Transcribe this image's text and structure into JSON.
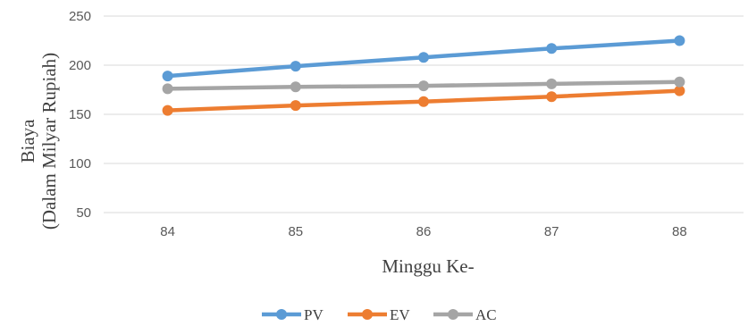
{
  "chart_data": {
    "type": "line",
    "title": "",
    "xlabel": "Minggu Ke-",
    "ylabel_line1": "Biaya",
    "ylabel_line2": "(Dalam Milyar Rupiah)",
    "categories": [
      "84",
      "85",
      "86",
      "87",
      "88"
    ],
    "y_ticks": [
      "50",
      "100",
      "150",
      "200",
      "250"
    ],
    "ylim": [
      50,
      250
    ],
    "grid": true,
    "legend_position": "bottom",
    "series": [
      {
        "name": "PV",
        "color": "#5B9BD5",
        "values": [
          189,
          199,
          208,
          217,
          225
        ]
      },
      {
        "name": "EV",
        "color": "#ED7D31",
        "values": [
          154,
          159,
          163,
          168,
          174
        ]
      },
      {
        "name": "AC",
        "color": "#A5A5A5",
        "values": [
          176,
          178,
          179,
          181,
          183
        ]
      }
    ]
  }
}
